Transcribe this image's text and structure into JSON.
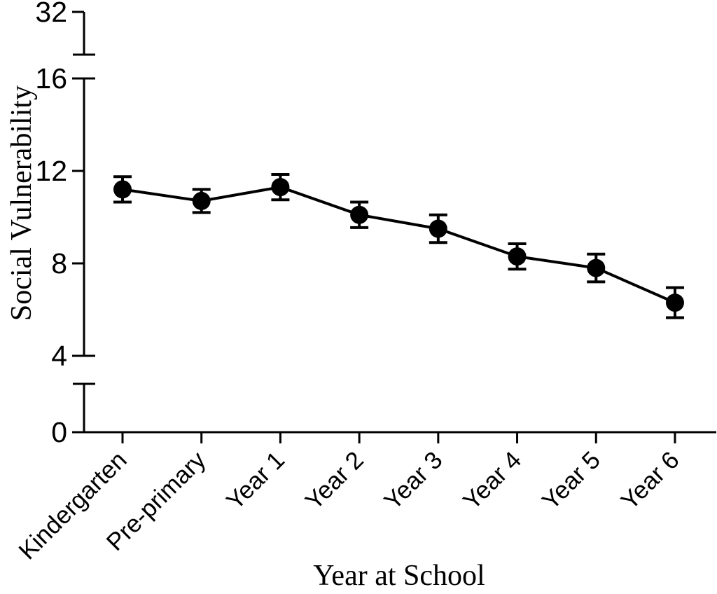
{
  "figure": {
    "background": "#ffffff",
    "foreground": "#000000"
  },
  "chart_data": {
    "type": "line",
    "title": "",
    "xlabel": "Year at School",
    "ylabel": "Social Vulnerability",
    "categories": [
      "Kindergarten",
      "Pre-primary",
      "Year 1",
      "Year 2",
      "Year 3",
      "Year 4",
      "Year 5",
      "Year 6"
    ],
    "series": [
      {
        "marker": "filled-circle",
        "color": "#000000",
        "values": [
          11.2,
          10.7,
          11.3,
          10.1,
          9.5,
          8.3,
          7.8,
          6.3
        ],
        "errors": [
          0.55,
          0.5,
          0.55,
          0.55,
          0.6,
          0.55,
          0.6,
          0.65
        ]
      }
    ],
    "y_axis": {
      "ticks": [
        0,
        4,
        8,
        12,
        16,
        32
      ],
      "breaks": [
        [
          0,
          4
        ],
        [
          16,
          32
        ]
      ],
      "scale": "linear-with-axis-breaks"
    },
    "x_axis": {
      "tick_label_rotation_deg": -45
    },
    "grid": false,
    "legend": false
  }
}
